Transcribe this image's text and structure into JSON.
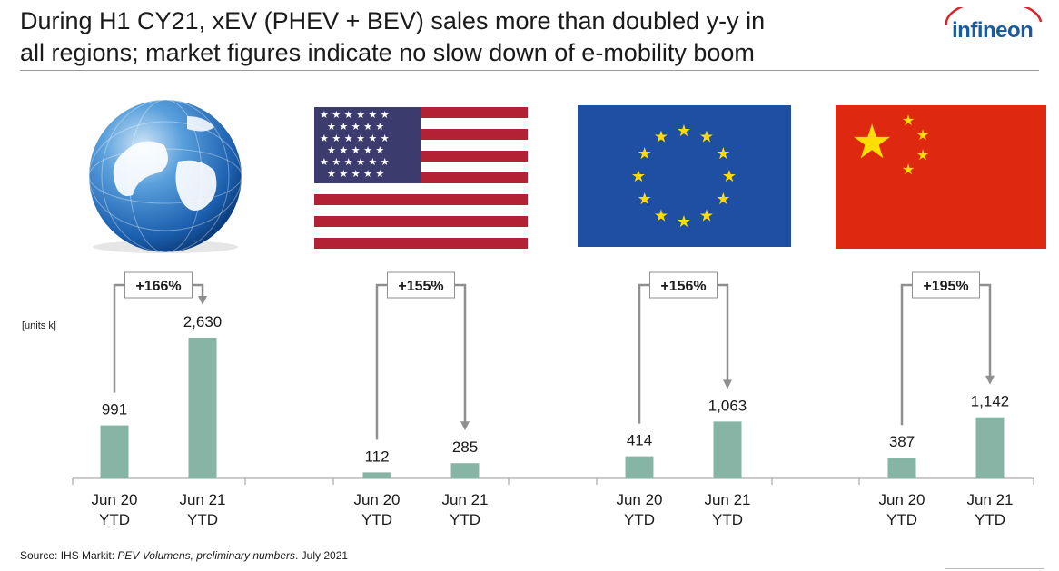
{
  "header": {
    "title_line1": "During H1 CY21, xEV (PHEV + BEV) sales more than doubled y-y in",
    "title_line2": "all regions; market figures indicate no slow down of e-mobility boom",
    "logo_text": "infineon"
  },
  "units_label": "[units k]",
  "footer": {
    "source_prefix": "Source: IHS Markit: ",
    "source_italic": "PEV Volumens, preliminary numbers",
    "source_suffix": ". July 2021"
  },
  "colors": {
    "bar": "#86b5a6",
    "arrow": "#8f8f8f",
    "logo": "#1a5b9c",
    "eu_blue": "#1e4fa3",
    "eu_star": "#ffdd00",
    "cn_red": "#de2910",
    "cn_star": "#ffde00",
    "us_red": "#b22234",
    "us_blue": "#3c3b6e"
  },
  "icons": [
    "globe-image",
    "usa-flag",
    "eu-flag",
    "china-flag",
    "infineon-logo"
  ],
  "chart_data": {
    "type": "bar",
    "ylabel": "[units k]",
    "categories": [
      "Jun 20\nYTD",
      "Jun 21\nYTD"
    ],
    "groups": [
      {
        "region_icon": "globe-image",
        "values": [
          991,
          2630
        ],
        "labels": [
          "991",
          "2,630"
        ],
        "growth": "+166%"
      },
      {
        "region_icon": "usa-flag",
        "values": [
          112,
          285
        ],
        "labels": [
          "112",
          "285"
        ],
        "growth": "+155%"
      },
      {
        "region_icon": "eu-flag",
        "values": [
          414,
          1063
        ],
        "labels": [
          "414",
          "1,063"
        ],
        "growth": "+156%"
      },
      {
        "region_icon": "china-flag",
        "values": [
          387,
          1142
        ],
        "labels": [
          "387",
          "1,142"
        ],
        "growth": "+195%"
      }
    ],
    "tick_line1": "Jun 20",
    "tick_line1b": "Jun 21",
    "tick_line2": "YTD",
    "ylim": [
      0,
      2630
    ]
  }
}
